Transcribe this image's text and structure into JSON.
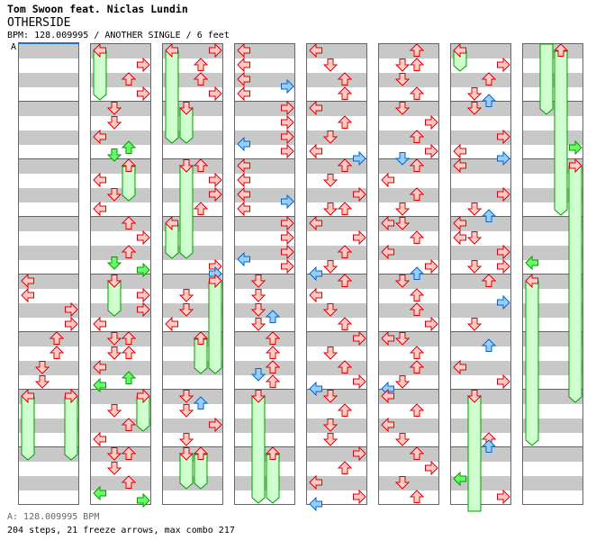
{
  "header": {
    "artist": "Tom Swoon feat. Niclas Lundin",
    "title": "OTHERSIDE",
    "meta": "BPM: 128.009995 / ANOTHER SINGLE / 6 feet",
    "bpm_marker": "A"
  },
  "footer": {
    "bpm": "A: 128.009995 BPM",
    "stats": "204 steps, 21 freeze arrows, max combo 217"
  },
  "colors": {
    "div4_fill": "#ffcccc",
    "div4_stroke": "#dd0000",
    "div8_fill": "#99ccff",
    "div8_stroke": "#0066cc",
    "div16_fill": "#66ff66",
    "div16_stroke": "#009900",
    "freeze_fill": "#ccffcc",
    "freeze_stroke": "#009900"
  },
  "lanes": [
    "left",
    "down",
    "up",
    "right"
  ],
  "columns": [
    {
      "notes": [
        [
          16,
          0,
          4
        ],
        [
          17,
          0,
          4
        ],
        [
          18,
          3,
          4
        ],
        [
          19,
          3,
          4
        ],
        [
          20,
          2,
          4
        ],
        [
          21,
          2,
          4
        ],
        [
          22,
          1,
          4
        ],
        [
          23,
          1,
          4
        ],
        [
          24,
          0,
          4
        ],
        [
          24,
          3,
          4
        ]
      ],
      "freezes": [
        [
          0,
          24,
          29
        ],
        [
          3,
          24,
          29
        ]
      ]
    },
    {
      "notes": [
        [
          0,
          0,
          4
        ],
        [
          1,
          3,
          4
        ],
        [
          2,
          2,
          4
        ],
        [
          3,
          3,
          4
        ],
        [
          4,
          1,
          4
        ],
        [
          5,
          1,
          4
        ],
        [
          6,
          0,
          4
        ],
        [
          6.75,
          2,
          16
        ],
        [
          7.25,
          1,
          16
        ],
        [
          8,
          2,
          4
        ],
        [
          9,
          0,
          4
        ],
        [
          10,
          1,
          4
        ],
        [
          11,
          0,
          4
        ],
        [
          12,
          2,
          4
        ],
        [
          13,
          3,
          4
        ],
        [
          14,
          2,
          4
        ],
        [
          14.75,
          1,
          16
        ],
        [
          15.25,
          3,
          16
        ],
        [
          16,
          1,
          4
        ],
        [
          17,
          3,
          4
        ],
        [
          18,
          3,
          4
        ],
        [
          19,
          0,
          4
        ],
        [
          20,
          1,
          4
        ],
        [
          20,
          2,
          4
        ],
        [
          21,
          1,
          4
        ],
        [
          21,
          2,
          4
        ],
        [
          22,
          0,
          4
        ],
        [
          22.75,
          2,
          16
        ],
        [
          23.25,
          0,
          16
        ],
        [
          24,
          3,
          4
        ],
        [
          25,
          1,
          4
        ],
        [
          26,
          2,
          4
        ],
        [
          27,
          0,
          4
        ],
        [
          28,
          1,
          4
        ],
        [
          28,
          2,
          4
        ],
        [
          29,
          1,
          4
        ],
        [
          30,
          2,
          4
        ],
        [
          30.75,
          0,
          16
        ],
        [
          31.25,
          3,
          16
        ]
      ],
      "freezes": [
        [
          0,
          0,
          4
        ],
        [
          2,
          8,
          11
        ],
        [
          1,
          16,
          19
        ],
        [
          3,
          24,
          27
        ]
      ]
    },
    {
      "notes": [
        [
          0,
          0,
          4
        ],
        [
          0,
          3,
          4
        ],
        [
          1,
          2,
          4
        ],
        [
          2,
          2,
          4
        ],
        [
          3,
          3,
          4
        ],
        [
          4,
          1,
          4
        ],
        [
          8,
          1,
          4
        ],
        [
          8,
          2,
          4
        ],
        [
          9,
          3,
          4
        ],
        [
          10,
          3,
          4
        ],
        [
          11,
          2,
          4
        ],
        [
          12,
          0,
          4
        ],
        [
          15,
          3,
          4
        ],
        [
          15.5,
          3,
          8
        ],
        [
          16,
          3,
          4
        ],
        [
          17,
          1,
          4
        ],
        [
          18,
          1,
          4
        ],
        [
          19,
          0,
          4
        ],
        [
          20,
          2,
          4
        ],
        [
          24,
          1,
          4
        ],
        [
          24.5,
          2,
          8
        ],
        [
          25,
          1,
          4
        ],
        [
          26,
          3,
          4
        ],
        [
          27,
          1,
          4
        ],
        [
          28,
          1,
          4
        ],
        [
          28,
          2,
          4
        ]
      ],
      "freezes": [
        [
          0,
          0,
          7
        ],
        [
          1,
          4,
          7
        ],
        [
          1,
          8,
          15
        ],
        [
          0,
          12,
          15
        ],
        [
          3,
          16,
          23
        ],
        [
          2,
          20,
          23
        ],
        [
          1,
          28,
          31
        ],
        [
          2,
          28,
          31
        ]
      ]
    },
    {
      "notes": [
        [
          0,
          0,
          4
        ],
        [
          1,
          0,
          4
        ],
        [
          2,
          0,
          4
        ],
        [
          2.5,
          3,
          8
        ],
        [
          3,
          0,
          4
        ],
        [
          4,
          3,
          4
        ],
        [
          5,
          3,
          4
        ],
        [
          6,
          3,
          4
        ],
        [
          6.5,
          0,
          8
        ],
        [
          7,
          3,
          4
        ],
        [
          8,
          0,
          4
        ],
        [
          9,
          0,
          4
        ],
        [
          10,
          0,
          4
        ],
        [
          10.5,
          3,
          8
        ],
        [
          11,
          0,
          4
        ],
        [
          12,
          3,
          4
        ],
        [
          13,
          3,
          4
        ],
        [
          14,
          3,
          4
        ],
        [
          14.5,
          0,
          8
        ],
        [
          15,
          3,
          4
        ],
        [
          16,
          1,
          4
        ],
        [
          17,
          1,
          4
        ],
        [
          18,
          1,
          4
        ],
        [
          18.5,
          2,
          8
        ],
        [
          19,
          1,
          4
        ],
        [
          20,
          2,
          4
        ],
        [
          21,
          2,
          4
        ],
        [
          22,
          2,
          4
        ],
        [
          22.5,
          1,
          8
        ],
        [
          23,
          2,
          4
        ],
        [
          24,
          1,
          4
        ],
        [
          28,
          2,
          4
        ]
      ],
      "freezes": [
        [
          1,
          24,
          32
        ],
        [
          2,
          28,
          32
        ]
      ]
    },
    {
      "notes": [
        [
          0,
          0,
          4
        ],
        [
          1,
          1,
          4
        ],
        [
          2,
          2,
          4
        ],
        [
          3,
          2,
          4
        ],
        [
          4,
          0,
          4
        ],
        [
          5,
          2,
          4
        ],
        [
          6,
          1,
          4
        ],
        [
          7,
          0,
          4
        ],
        [
          7.5,
          3,
          8
        ],
        [
          8,
          2,
          4
        ],
        [
          9,
          1,
          4
        ],
        [
          10,
          3,
          4
        ],
        [
          11,
          1,
          4
        ],
        [
          11,
          2,
          4
        ],
        [
          12,
          0,
          4
        ],
        [
          13,
          3,
          4
        ],
        [
          14,
          2,
          4
        ],
        [
          15,
          1,
          4
        ],
        [
          15.5,
          0,
          8
        ],
        [
          16,
          2,
          4
        ],
        [
          17,
          0,
          4
        ],
        [
          18,
          1,
          4
        ],
        [
          19,
          2,
          4
        ],
        [
          20,
          3,
          4
        ],
        [
          21,
          1,
          4
        ],
        [
          22,
          2,
          4
        ],
        [
          23,
          3,
          4
        ],
        [
          23.5,
          0,
          8
        ],
        [
          24,
          1,
          4
        ],
        [
          25,
          2,
          4
        ],
        [
          26,
          1,
          4
        ],
        [
          27,
          1,
          4
        ],
        [
          28,
          3,
          4
        ],
        [
          29,
          2,
          4
        ],
        [
          30,
          0,
          4
        ],
        [
          31,
          3,
          4
        ],
        [
          31.5,
          0,
          8
        ]
      ],
      "freezes": []
    },
    {
      "notes": [
        [
          0,
          2,
          4
        ],
        [
          1,
          1,
          4
        ],
        [
          1,
          2,
          4
        ],
        [
          2,
          1,
          4
        ],
        [
          3,
          2,
          4
        ],
        [
          4,
          1,
          4
        ],
        [
          5,
          3,
          4
        ],
        [
          6,
          2,
          4
        ],
        [
          7,
          3,
          4
        ],
        [
          7.5,
          1,
          8
        ],
        [
          8,
          2,
          4
        ],
        [
          9,
          0,
          4
        ],
        [
          10,
          2,
          4
        ],
        [
          11,
          1,
          4
        ],
        [
          12,
          0,
          4
        ],
        [
          12,
          1,
          4
        ],
        [
          13,
          2,
          4
        ],
        [
          14,
          0,
          4
        ],
        [
          15,
          3,
          4
        ],
        [
          15.5,
          2,
          8
        ],
        [
          16,
          1,
          4
        ],
        [
          17,
          2,
          4
        ],
        [
          18,
          2,
          4
        ],
        [
          19,
          3,
          4
        ],
        [
          20,
          0,
          4
        ],
        [
          20,
          1,
          4
        ],
        [
          21,
          2,
          4
        ],
        [
          22,
          2,
          4
        ],
        [
          23,
          1,
          4
        ],
        [
          23.5,
          0,
          8
        ],
        [
          24,
          0,
          4
        ],
        [
          25,
          2,
          4
        ],
        [
          26,
          0,
          4
        ],
        [
          27,
          1,
          4
        ],
        [
          28,
          2,
          4
        ],
        [
          29,
          3,
          4
        ],
        [
          30,
          1,
          4
        ],
        [
          31,
          2,
          4
        ]
      ],
      "freezes": []
    },
    {
      "notes": [
        [
          0,
          0,
          4
        ],
        [
          1,
          3,
          4
        ],
        [
          2,
          2,
          4
        ],
        [
          3,
          1,
          4
        ],
        [
          3.5,
          2,
          8
        ],
        [
          4,
          1,
          4
        ],
        [
          6,
          3,
          4
        ],
        [
          7,
          0,
          4
        ],
        [
          7.5,
          3,
          8
        ],
        [
          8,
          0,
          4
        ],
        [
          10,
          3,
          4
        ],
        [
          11,
          1,
          4
        ],
        [
          11.5,
          2,
          8
        ],
        [
          12,
          0,
          4
        ],
        [
          13,
          0,
          4
        ],
        [
          13,
          1,
          4
        ],
        [
          14,
          3,
          4
        ],
        [
          15,
          1,
          4
        ],
        [
          15,
          3,
          4
        ],
        [
          16,
          2,
          4
        ],
        [
          17.5,
          3,
          8
        ],
        [
          19,
          1,
          4
        ],
        [
          20.5,
          2,
          8
        ],
        [
          22,
          0,
          4
        ],
        [
          23,
          3,
          4
        ],
        [
          24,
          1,
          4
        ],
        [
          27,
          2,
          4
        ],
        [
          27.5,
          2,
          8
        ],
        [
          29.75,
          0,
          16
        ],
        [
          31,
          3,
          4
        ]
      ],
      "freezes": [
        [
          0,
          0,
          2
        ],
        [
          1,
          24,
          32.5
        ]
      ]
    },
    {
      "notes": [
        [
          0,
          2,
          4
        ],
        [
          6.75,
          3,
          16
        ],
        [
          8,
          3,
          4
        ],
        [
          14.75,
          0,
          16
        ],
        [
          16,
          0,
          4
        ]
      ],
      "freezes": [
        [
          1,
          -0.5,
          5
        ],
        [
          2,
          0,
          12
        ],
        [
          3,
          8,
          25
        ],
        [
          0,
          16,
          28
        ]
      ]
    }
  ]
}
